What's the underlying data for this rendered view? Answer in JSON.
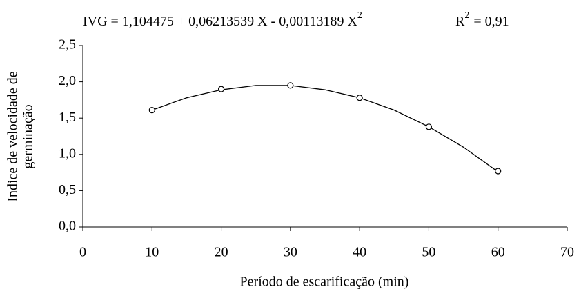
{
  "chart_data": {
    "type": "scatter",
    "equation": {
      "text": "IVG = 1,104475 + 0,06213539 X - 0,00113189 X",
      "sup": "2"
    },
    "r_squared": {
      "text": "R",
      "sup": "2",
      "value": "= 0,91"
    },
    "x_label": "Período de escarificação (min)",
    "y_label": [
      "Indice de velocidade de",
      "germinação"
    ],
    "xlim": [
      0,
      70
    ],
    "xticks": [
      0,
      10,
      20,
      30,
      40,
      50,
      60,
      70
    ],
    "ylim": [
      0,
      2.5
    ],
    "yticks": [
      {
        "value": 0,
        "label": "0,0"
      },
      {
        "value": 0.5,
        "label": "0,5"
      },
      {
        "value": 1,
        "label": "1,0"
      },
      {
        "value": 1.5,
        "label": "1,5"
      },
      {
        "value": 2,
        "label": "2,0"
      },
      {
        "value": 2.5,
        "label": "2,5"
      }
    ],
    "grid": false,
    "series": [
      {
        "color": "#000000",
        "marker": "open-circle",
        "x": [
          10,
          20,
          30,
          40,
          50,
          60
        ],
        "values": [
          1.61,
          1.9,
          1.95,
          1.78,
          1.38,
          0.77
        ]
      },
      {
        "color": "#000000",
        "marker": "line",
        "x": [
          10,
          15,
          20,
          25,
          30,
          35,
          40,
          45,
          50,
          55,
          60
        ],
        "values": [
          1.61,
          1.78,
          1.89,
          1.95,
          1.95,
          1.89,
          1.78,
          1.61,
          1.38,
          1.1,
          0.76
        ]
      }
    ]
  }
}
